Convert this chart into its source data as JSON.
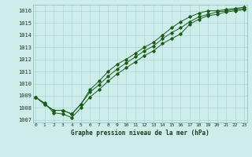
{
  "title": "Graphe pression niveau de la mer (hPa)",
  "background_color": "#ceecea",
  "grid_color": "#a8d8d4",
  "line_color": "#1a5c1a",
  "x_labels": [
    "0",
    "1",
    "2",
    "3",
    "4",
    "5",
    "6",
    "7",
    "8",
    "9",
    "10",
    "11",
    "12",
    "13",
    "14",
    "15",
    "16",
    "17",
    "18",
    "19",
    "20",
    "21",
    "22",
    "23"
  ],
  "ylim": [
    1006.8,
    1016.5
  ],
  "yticks": [
    1007,
    1008,
    1009,
    1010,
    1011,
    1012,
    1013,
    1014,
    1015,
    1016
  ],
  "series_min": [
    1008.9,
    1008.4,
    1007.6,
    1007.5,
    1007.2,
    1008.0,
    1008.9,
    1009.5,
    1010.2,
    1010.8,
    1011.3,
    1011.8,
    1012.3,
    1012.7,
    1013.3,
    1013.7,
    1014.1,
    1014.9,
    1015.3,
    1015.6,
    1015.7,
    1015.9,
    1016.0,
    1016.1
  ],
  "series_mid": [
    1008.9,
    1008.3,
    1007.8,
    1007.8,
    1007.5,
    1008.3,
    1009.3,
    1009.9,
    1010.6,
    1011.2,
    1011.7,
    1012.2,
    1012.7,
    1013.1,
    1013.7,
    1014.2,
    1014.6,
    1015.1,
    1015.5,
    1015.7,
    1015.9,
    1016.0,
    1016.1,
    1016.2
  ],
  "series_max": [
    1008.9,
    1008.3,
    1007.8,
    1007.8,
    1007.5,
    1008.3,
    1009.5,
    1010.2,
    1011.0,
    1011.6,
    1012.0,
    1012.5,
    1013.0,
    1013.4,
    1014.0,
    1014.6,
    1015.1,
    1015.5,
    1015.8,
    1016.0,
    1016.0,
    1016.1,
    1016.2,
    1016.3
  ],
  "figwidth": 3.2,
  "figheight": 2.0,
  "dpi": 100
}
